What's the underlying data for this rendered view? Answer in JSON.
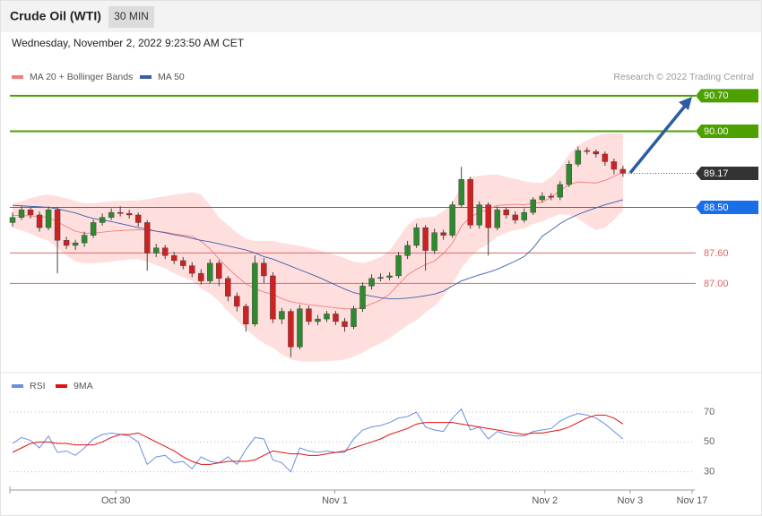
{
  "header": {
    "title": "Crude Oil (WTI)",
    "interval": "30 MIN",
    "timestamp": "Wednesday, November 2, 2022 9:23:50 AM CET",
    "source": "Research © 2022 Trading Central"
  },
  "chart_data": [
    {
      "type": "candlestick",
      "up_color": "#2f8a2f",
      "down_color": "#cc2222",
      "xlim": [
        -0.3,
        76
      ],
      "ylim": [
        85.26,
        91.95
      ],
      "open": [
        88.2,
        88.3,
        88.45,
        88.35,
        88.1,
        88.45,
        87.85,
        87.75,
        87.8,
        87.95,
        88.2,
        88.3,
        88.4,
        88.38,
        88.35,
        88.2,
        87.6,
        87.7,
        87.55,
        87.45,
        87.35,
        87.2,
        87.05,
        87.4,
        87.1,
        86.75,
        86.55,
        86.2,
        87.4,
        87.15,
        86.3,
        86.45,
        85.75,
        86.5,
        86.25,
        86.3,
        86.4,
        86.25,
        86.15,
        86.5,
        86.95,
        87.1,
        87.12,
        87.15,
        87.55,
        87.75,
        88.1,
        87.65,
        88.0,
        87.95,
        88.55,
        89.05,
        88.15,
        88.55,
        88.1,
        88.45,
        88.35,
        88.25,
        88.4,
        88.65,
        88.72,
        88.7,
        88.95,
        89.35,
        89.62,
        89.6,
        89.55,
        89.4,
        89.25
      ],
      "high": [
        88.4,
        88.52,
        88.5,
        88.42,
        88.52,
        88.5,
        87.92,
        87.86,
        88.02,
        88.26,
        88.38,
        88.48,
        88.52,
        88.45,
        88.4,
        88.25,
        87.78,
        87.76,
        87.62,
        87.52,
        87.42,
        87.28,
        87.48,
        87.46,
        87.15,
        86.82,
        86.6,
        87.55,
        87.5,
        87.22,
        86.52,
        86.5,
        86.58,
        86.56,
        86.38,
        86.46,
        86.46,
        86.32,
        86.56,
        87.02,
        87.18,
        87.2,
        87.22,
        87.62,
        87.84,
        88.18,
        88.15,
        88.08,
        88.06,
        88.62,
        89.3,
        89.1,
        88.62,
        88.6,
        88.52,
        88.5,
        88.42,
        88.48,
        88.7,
        88.8,
        88.78,
        89.02,
        89.42,
        89.7,
        89.68,
        89.64,
        89.6,
        89.46,
        89.32
      ],
      "low": [
        88.12,
        88.25,
        88.28,
        88.02,
        88.05,
        87.2,
        87.68,
        87.66,
        87.72,
        87.9,
        88.14,
        88.25,
        88.32,
        88.28,
        88.12,
        87.25,
        87.52,
        87.48,
        87.38,
        87.28,
        87.12,
        86.98,
        87.0,
        86.95,
        86.65,
        86.45,
        86.05,
        86.15,
        87.0,
        86.22,
        86.2,
        85.55,
        85.7,
        86.18,
        86.18,
        86.24,
        86.18,
        86.05,
        86.1,
        86.44,
        86.88,
        87.04,
        87.06,
        87.1,
        87.48,
        87.7,
        87.25,
        87.58,
        87.86,
        87.9,
        88.5,
        88.08,
        88.08,
        87.55,
        88.05,
        88.28,
        88.18,
        88.2,
        88.35,
        88.6,
        88.64,
        88.64,
        88.9,
        89.3,
        89.54,
        89.48,
        89.32,
        89.15,
        89.1
      ],
      "close": [
        88.3,
        88.45,
        88.35,
        88.1,
        88.45,
        87.85,
        87.75,
        87.8,
        87.95,
        88.2,
        88.3,
        88.4,
        88.38,
        88.35,
        88.2,
        87.6,
        87.7,
        87.55,
        87.45,
        87.35,
        87.2,
        87.05,
        87.4,
        87.1,
        86.75,
        86.55,
        86.2,
        87.4,
        87.15,
        86.3,
        86.45,
        85.75,
        86.5,
        86.25,
        86.3,
        86.4,
        86.25,
        86.15,
        86.5,
        86.95,
        87.1,
        87.12,
        87.15,
        87.55,
        87.75,
        88.1,
        87.65,
        88.0,
        87.95,
        88.55,
        89.05,
        88.15,
        88.55,
        88.1,
        88.45,
        88.35,
        88.25,
        88.4,
        88.65,
        88.72,
        88.7,
        88.95,
        89.35,
        89.62,
        89.6,
        89.55,
        89.4,
        89.25,
        89.17
      ],
      "series": [
        {
          "name": "MA 20 + Bollinger Bands",
          "color": "#f08080",
          "band_color": "#ffdede",
          "values": [
            88.34,
            88.34,
            88.33,
            88.32,
            88.3,
            88.21,
            88.12,
            88.03,
            87.99,
            87.99,
            88.01,
            88.03,
            88.04,
            88.05,
            88.06,
            88.05,
            88.03,
            88.01,
            87.98,
            87.95,
            87.93,
            87.83,
            87.68,
            87.48,
            87.3,
            87.14,
            86.99,
            86.9,
            86.83,
            86.79,
            86.7,
            86.64,
            86.61,
            86.58,
            86.56,
            86.54,
            86.52,
            86.5,
            86.5,
            86.52,
            86.6,
            86.67,
            86.79,
            86.98,
            87.17,
            87.28,
            87.37,
            87.44,
            87.59,
            87.79,
            88.13,
            88.31,
            88.4,
            88.46,
            88.54,
            88.55,
            88.56,
            88.55,
            88.58,
            88.6,
            88.7,
            88.83,
            88.95,
            89.0,
            88.99,
            88.98,
            89.03,
            89.11,
            89.2
          ],
          "upper": [
            88.58,
            88.62,
            88.68,
            88.73,
            88.75,
            88.72,
            88.68,
            88.62,
            88.58,
            88.58,
            88.6,
            88.62,
            88.63,
            88.63,
            88.64,
            88.66,
            88.69,
            88.72,
            88.75,
            88.77,
            88.8,
            88.75,
            88.55,
            88.3,
            88.15,
            88.0,
            87.88,
            87.84,
            87.84,
            87.84,
            87.8,
            87.77,
            87.74,
            87.7,
            87.66,
            87.61,
            87.56,
            87.5,
            87.43,
            87.4,
            87.45,
            87.52,
            87.65,
            87.9,
            88.15,
            88.28,
            88.3,
            88.32,
            88.42,
            88.6,
            88.95,
            89.1,
            89.12,
            89.14,
            89.15,
            89.1,
            89.06,
            89.02,
            88.99,
            88.98,
            89.1,
            89.28,
            89.55,
            89.72,
            89.82,
            89.9,
            89.95,
            89.96,
            89.96
          ],
          "lower": [
            88.1,
            88.05,
            87.98,
            87.9,
            87.84,
            87.7,
            87.55,
            87.43,
            87.4,
            87.4,
            87.41,
            87.43,
            87.45,
            87.47,
            87.48,
            87.43,
            87.36,
            87.3,
            87.2,
            87.12,
            87.05,
            86.9,
            86.8,
            86.65,
            86.45,
            86.28,
            86.1,
            85.95,
            85.82,
            85.73,
            85.6,
            85.5,
            85.47,
            85.46,
            85.46,
            85.47,
            85.48,
            85.5,
            85.56,
            85.64,
            85.74,
            85.82,
            85.92,
            86.05,
            86.18,
            86.28,
            86.43,
            86.55,
            86.75,
            86.98,
            87.3,
            87.52,
            87.68,
            87.78,
            87.92,
            88.0,
            88.05,
            88.08,
            88.17,
            88.22,
            88.3,
            88.37,
            88.35,
            88.28,
            88.15,
            88.05,
            88.1,
            88.25,
            88.44
          ]
        },
        {
          "name": "MA 50",
          "color": "#3a5fa8",
          "values": [
            88.54,
            88.53,
            88.52,
            88.51,
            88.5,
            88.47,
            88.43,
            88.39,
            88.33,
            88.28,
            88.25,
            88.22,
            88.18,
            88.14,
            88.1,
            88.07,
            88.03,
            88.0,
            87.96,
            87.93,
            87.89,
            87.85,
            87.82,
            87.78,
            87.74,
            87.7,
            87.66,
            87.6,
            87.53,
            87.48,
            87.41,
            87.34,
            87.27,
            87.2,
            87.13,
            87.05,
            86.97,
            86.89,
            86.82,
            86.78,
            86.75,
            86.72,
            86.7,
            86.7,
            86.71,
            86.73,
            86.76,
            86.79,
            86.85,
            86.95,
            87.05,
            87.11,
            87.17,
            87.22,
            87.28,
            87.36,
            87.44,
            87.53,
            87.7,
            87.93,
            88.05,
            88.18,
            88.28,
            88.36,
            88.43,
            88.49,
            88.55,
            88.6,
            88.65
          ]
        }
      ],
      "levels": [
        {
          "value": 90.7,
          "label": "90.70",
          "color": "#4ca000",
          "line": "solid",
          "box": true
        },
        {
          "value": 90,
          "label": "90.00",
          "color": "#4ca000",
          "line": "solid",
          "box": true
        },
        {
          "value": 89.17,
          "color": "#333333",
          "line": "dotted",
          "box": true
        },
        {
          "value": 88.5,
          "label": "88.50",
          "color": "#1a6fe8",
          "line": "solid",
          "box": true
        },
        {
          "value": 87.6,
          "label": "87.60",
          "color": "#e06666",
          "line": "solid",
          "box": false
        },
        {
          "value": 87,
          "label": "87.00",
          "color": "#e06666",
          "line": "solid",
          "box": false
        }
      ]
    },
    {
      "type": "line",
      "xlim": [
        -0.3,
        76
      ],
      "xticks": [
        {
          "value": 11.5,
          "label": "Oct 30"
        },
        {
          "value": 35.9,
          "label": "Nov 1"
        },
        {
          "value": 59.3,
          "label": "Nov 2"
        },
        {
          "value": 68.8,
          "label": "Nov 3"
        },
        {
          "value": 75.7,
          "label": "Nov 17"
        }
      ],
      "ylim": [
        22,
        82
      ],
      "yticks": [
        30,
        50,
        70
      ],
      "grid": true,
      "series": [
        {
          "name": "RSI",
          "color": "#6a8ee0",
          "values": [
            49,
            53,
            51,
            46,
            54,
            43,
            44,
            41,
            46,
            52,
            55,
            56,
            55,
            54,
            50,
            35,
            40,
            41,
            36,
            37,
            32,
            40,
            37,
            36,
            40,
            35,
            45,
            53,
            52,
            38,
            36,
            30,
            46,
            44,
            43,
            44,
            43,
            43,
            52,
            58,
            60,
            61,
            63,
            66,
            67,
            70,
            60,
            58,
            57,
            66,
            72,
            58,
            60,
            52,
            57,
            55,
            54,
            54,
            57,
            58,
            59,
            64,
            67,
            69,
            68,
            66,
            62,
            57,
            52
          ]
        },
        {
          "name": "9MA",
          "color": "#e01010",
          "values": [
            43,
            46,
            49,
            50,
            50,
            49,
            49,
            48,
            48,
            48,
            50,
            53,
            55,
            55,
            56,
            53,
            50,
            47,
            44,
            40,
            37,
            35,
            35,
            36,
            37,
            37,
            37,
            38,
            41,
            44,
            43,
            42,
            42,
            41,
            41,
            42,
            43,
            44,
            46,
            48,
            50,
            52,
            55,
            57,
            59,
            62,
            63,
            63,
            63,
            63,
            62,
            61,
            60,
            59,
            58,
            57,
            56,
            55,
            56,
            56,
            57,
            58,
            60,
            63,
            66,
            68,
            68,
            66,
            62
          ]
        }
      ]
    }
  ]
}
